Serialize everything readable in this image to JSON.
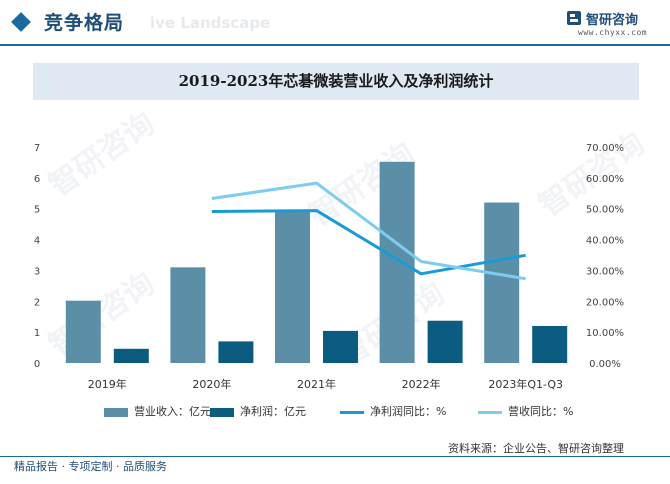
{
  "header": {
    "section_title": "竞争格局",
    "watermark_en": "ive Landscape",
    "brand_name": "智研咨询",
    "brand_url": "www.chyxx.com"
  },
  "chart_data": {
    "type": "bar",
    "title": "2019-2023年芯碁微装营业收入及净利润统计",
    "categories": [
      "2019年",
      "2020年",
      "2021年",
      "2022年",
      "2023年Q1-Q3"
    ],
    "series": [
      {
        "name": "营业收入：亿元",
        "kind": "bar",
        "axis": "left",
        "color": "#5b8fa8",
        "values": [
          2.02,
          3.1,
          4.91,
          6.52,
          5.2
        ]
      },
      {
        "name": "净利润：亿元",
        "kind": "bar",
        "axis": "left",
        "color": "#0b5c80",
        "values": [
          0.46,
          0.7,
          1.04,
          1.37,
          1.2
        ]
      },
      {
        "name": "净利润同比：%",
        "kind": "line",
        "axis": "right",
        "color": "#1a9ad6",
        "values": [
          null,
          49.1,
          49.4,
          28.9,
          34.9
        ]
      },
      {
        "name": "营收同比：%",
        "kind": "line",
        "axis": "right",
        "color": "#7ecdf0",
        "values": [
          null,
          53.3,
          58.3,
          32.9,
          27.3
        ]
      }
    ],
    "y_left": {
      "min": 0,
      "max": 7,
      "ticks": [
        "0",
        "1",
        "2",
        "3",
        "4",
        "5",
        "6",
        "7"
      ]
    },
    "y_right": {
      "min": 0,
      "max": 70,
      "ticks": [
        "0.00%",
        "10.00%",
        "20.00%",
        "30.00%",
        "40.00%",
        "50.00%",
        "60.00%",
        "70.00%"
      ]
    },
    "grid": false,
    "legend_position": "bottom"
  },
  "footer": {
    "source": "资料来源：企业公告、智研咨询整理",
    "tagline": "精品报告 · 专项定制 · 品质服务"
  }
}
